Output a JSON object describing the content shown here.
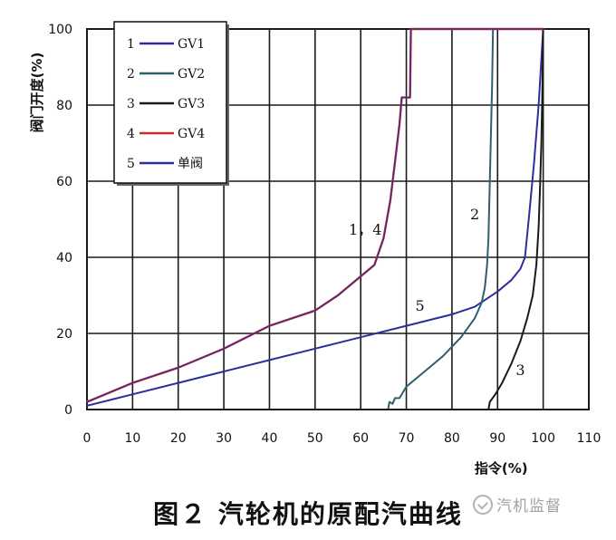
{
  "chart_data": {
    "type": "line",
    "title": "",
    "ylabel": "阀门开度(%)",
    "xlabel": "指令(%)",
    "xlim": [
      0,
      110
    ],
    "ylim": [
      0,
      100
    ],
    "x_ticks": [
      0,
      10,
      20,
      30,
      40,
      50,
      60,
      70,
      80,
      90,
      100,
      110
    ],
    "y_ticks": [
      0,
      20,
      40,
      60,
      80,
      100
    ],
    "grid": true,
    "legend_placement": "top-left",
    "series": [
      {
        "key": "GV1",
        "legend_number": "1",
        "name": "GV1",
        "color": "#2e2e9e",
        "points": [
          [
            0,
            2
          ],
          [
            10,
            7
          ],
          [
            20,
            11
          ],
          [
            30,
            16
          ],
          [
            40,
            22
          ],
          [
            50,
            26
          ],
          [
            55,
            30
          ],
          [
            63,
            38
          ],
          [
            65,
            45
          ],
          [
            66.5,
            55
          ],
          [
            67.5,
            65
          ],
          [
            68.5,
            75
          ],
          [
            69,
            82
          ],
          [
            70.5,
            82
          ],
          [
            70.8,
            82
          ],
          [
            71,
            100
          ],
          [
            100,
            100
          ]
        ]
      },
      {
        "key": "GV2",
        "legend_number": "2",
        "name": "GV2",
        "color": "#2f5f6e",
        "points": [
          [
            0,
            0
          ],
          [
            66,
            0
          ],
          [
            66.3,
            2
          ],
          [
            67,
            1.5
          ],
          [
            67.5,
            3
          ],
          [
            68.5,
            3
          ],
          [
            70,
            6
          ],
          [
            74,
            10
          ],
          [
            78,
            14
          ],
          [
            82,
            19
          ],
          [
            85,
            24
          ],
          [
            86.5,
            28
          ],
          [
            87.2,
            32
          ],
          [
            87.7,
            38
          ],
          [
            88,
            45
          ],
          [
            88.2,
            55
          ],
          [
            88.4,
            65
          ],
          [
            88.6,
            75
          ],
          [
            88.8,
            85
          ],
          [
            89,
            100
          ]
        ]
      },
      {
        "key": "GV3",
        "legend_number": "3",
        "name": "GV3",
        "color": "#1a1a1a",
        "points": [
          [
            0,
            0
          ],
          [
            88,
            0
          ],
          [
            88.3,
            2
          ],
          [
            89.5,
            4
          ],
          [
            91,
            7
          ],
          [
            93,
            12
          ],
          [
            95,
            18
          ],
          [
            96.5,
            24
          ],
          [
            97.7,
            30
          ],
          [
            98.5,
            38
          ],
          [
            99,
            48
          ],
          [
            99.3,
            58
          ],
          [
            99.6,
            70
          ],
          [
            99.8,
            82
          ],
          [
            100,
            100
          ]
        ]
      },
      {
        "key": "GV4",
        "legend_number": "4",
        "name": "GV4",
        "color": "#cc2b2b",
        "points": [
          [
            0,
            2
          ],
          [
            10,
            7
          ],
          [
            20,
            11
          ],
          [
            30,
            16
          ],
          [
            40,
            22
          ],
          [
            50,
            26
          ],
          [
            55,
            30
          ],
          [
            63,
            38
          ],
          [
            65,
            45
          ],
          [
            66.5,
            55
          ],
          [
            67.5,
            65
          ],
          [
            68.5,
            75
          ],
          [
            69,
            82
          ],
          [
            70.5,
            82
          ],
          [
            70.8,
            82
          ],
          [
            71,
            100
          ],
          [
            100,
            100
          ]
        ]
      },
      {
        "key": "single",
        "legend_number": "5",
        "name": "单阀",
        "color": "#2e2e9e",
        "points": [
          [
            0,
            1
          ],
          [
            10,
            4
          ],
          [
            20,
            7
          ],
          [
            30,
            10
          ],
          [
            40,
            13
          ],
          [
            50,
            16
          ],
          [
            60,
            19
          ],
          [
            70,
            22
          ],
          [
            80,
            25
          ],
          [
            85,
            27
          ],
          [
            90,
            31
          ],
          [
            93,
            34
          ],
          [
            95,
            37
          ],
          [
            96,
            40
          ],
          [
            97,
            52
          ],
          [
            98,
            65
          ],
          [
            99,
            80
          ],
          [
            100,
            100
          ]
        ]
      }
    ],
    "annotations": [
      {
        "text": "1，4",
        "x": 61,
        "y": 46
      },
      {
        "text": "2",
        "x": 85,
        "y": 50
      },
      {
        "text": "5",
        "x": 73,
        "y": 26
      },
      {
        "text": "3",
        "x": 95,
        "y": 9
      }
    ]
  },
  "figure": {
    "caption": "图２ 汽轮机的原配汽曲线",
    "watermark": "汽机监督"
  }
}
